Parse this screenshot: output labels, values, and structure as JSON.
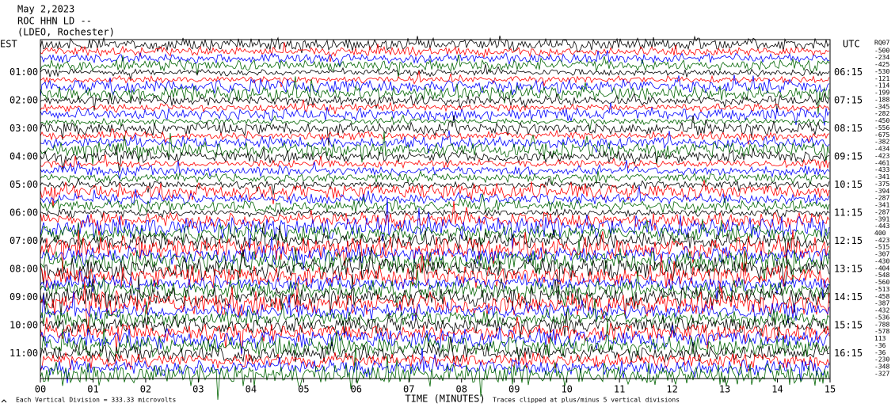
{
  "chart_data": {
    "type": "helicorder",
    "date": "May 2,2023",
    "station": "ROC HHN LD --",
    "network": "(LDEO, Rochester)",
    "left_axis_label": "EST",
    "right_axis_label": "UTC",
    "left_labels": [
      "01:00",
      "02:00",
      "03:00",
      "04:00",
      "05:00",
      "06:00",
      "07:00",
      "08:00",
      "09:00",
      "10:00",
      "11:00"
    ],
    "right_labels": [
      "06:15",
      "07:15",
      "08:15",
      "09:15",
      "10:15",
      "11:15",
      "12:15",
      "13:15",
      "14:15",
      "15:15",
      "16:15"
    ],
    "station_code": "RQ07",
    "trace_offsets": [
      -500,
      -234,
      -425,
      -530,
      -121,
      -114,
      -199,
      -188,
      -345,
      -282,
      -450,
      -556,
      -675,
      -382,
      -434,
      -423,
      -461,
      -433,
      -341,
      -375,
      -394,
      -287,
      -341,
      -287,
      -391,
      -443,
      400,
      -423,
      -515,
      -307,
      -430,
      -404,
      -548,
      -560,
      -513,
      -458,
      -387,
      -432,
      -536,
      -788,
      -578,
      113,
      -36,
      -36,
      -230,
      -348,
      -327
    ],
    "trace_colors": [
      "#000000",
      "#ff0000",
      "#0000ff",
      "#006400"
    ],
    "xlim": [
      0,
      15
    ],
    "xticks": [
      {
        "value": 0,
        "label": "00"
      },
      {
        "value": 1,
        "label": "01"
      },
      {
        "value": 2,
        "label": "02"
      },
      {
        "value": 3,
        "label": "03"
      },
      {
        "value": 4,
        "label": "04"
      },
      {
        "value": 5,
        "label": "05"
      },
      {
        "value": 6,
        "label": "06"
      },
      {
        "value": 7,
        "label": "07"
      },
      {
        "value": 8,
        "label": "08"
      },
      {
        "value": 9,
        "label": "09"
      },
      10,
      11,
      12,
      13,
      14,
      15
    ],
    "xlabel": "TIME (MINUTES)",
    "scale_note": "Each Vertical Division =  333.33 microvolts",
    "clip_note": "Traces clipped at plus/minus 5 vertical divisions"
  }
}
